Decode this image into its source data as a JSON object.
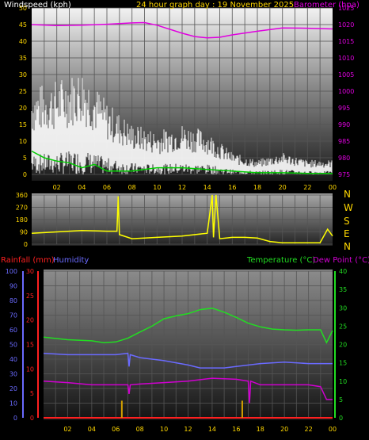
{
  "header": {
    "windspeed_label": "Windspeed (kph)",
    "title": "24 hour graph day : 19 November 2025",
    "barometer_label": "Barometer (hpa)"
  },
  "wind_dir_letters": [
    "N",
    "W",
    "S",
    "E",
    "N"
  ],
  "bottom_labels": {
    "rainfall": "Rainfall (mm)",
    "humidity": "Humidity",
    "temperature": "Temperature (°C)",
    "dewpoint": "Dew Point (°C)"
  },
  "time_ticks": [
    "02",
    "04",
    "06",
    "08",
    "10",
    "12",
    "14",
    "16",
    "18",
    "20",
    "22",
    "00"
  ],
  "colors": {
    "background": "#000000",
    "barometer": "#e000e0",
    "wind": "#ffffff",
    "wind_avg": "#00cc00",
    "direction": "#ffff00",
    "rainfall": "#ff2020",
    "humidity": "#6a6aff",
    "temperature": "#22dd22",
    "dewpoint": "#d000d0",
    "rain_bar": "#d4a000"
  },
  "chart_data": [
    {
      "type": "line",
      "name": "wind-barometer",
      "x": [
        0,
        2,
        4,
        6,
        8,
        10,
        12,
        14,
        16,
        18,
        20,
        22,
        24
      ],
      "xlabel": "",
      "y_left": {
        "label": "Windspeed (kph)",
        "range": [
          0,
          50
        ],
        "ticks": [
          "0",
          "5",
          "10",
          "15",
          "20",
          "25",
          "30",
          "35",
          "40",
          "45",
          "50"
        ]
      },
      "y_right": {
        "label": "Barometer (hpa)",
        "range": [
          975,
          1025
        ],
        "ticks": [
          "975",
          "980",
          "985",
          "990",
          "995",
          "1000",
          "1005",
          "1010",
          "1015",
          "1020",
          "1025"
        ]
      },
      "series": [
        {
          "name": "Barometer (hpa)",
          "axis": "right",
          "x": [
            0,
            2,
            4,
            6,
            8,
            9,
            10,
            12,
            13,
            14,
            15,
            16,
            18,
            20,
            22,
            24
          ],
          "y": [
            1020,
            1019.7,
            1019.8,
            1020.1,
            1020.5,
            1020.6,
            1019.8,
            1017.4,
            1016.4,
            1016.0,
            1016.2,
            1016.9,
            1018.0,
            1019.0,
            1018.9,
            1018.7
          ]
        },
        {
          "name": "Windspeed (kph)",
          "axis": "left",
          "x": [
            0,
            2,
            4,
            6,
            8,
            10,
            12,
            14,
            16,
            18,
            20,
            22,
            24
          ],
          "y": [
            12,
            13,
            15,
            10,
            7,
            6,
            7,
            6,
            3,
            2,
            3,
            2,
            2
          ],
          "gust_peak": 29
        },
        {
          "name": "Average wind",
          "axis": "left",
          "x": [
            0,
            1,
            2,
            3,
            4,
            5,
            6,
            8,
            10,
            12,
            14,
            16,
            18,
            20,
            22,
            24
          ],
          "y": [
            7,
            5,
            4,
            3.5,
            2,
            3,
            1,
            1,
            2,
            2,
            1.5,
            1,
            0.5,
            0.5,
            0.3,
            0.3
          ]
        }
      ],
      "grid": true
    },
    {
      "type": "line",
      "name": "wind-direction",
      "x": [
        0,
        2,
        4,
        6,
        8,
        10,
        12,
        14,
        16,
        18,
        20,
        22,
        24
      ],
      "xlabel": "",
      "y": {
        "label": "",
        "range": [
          0,
          360
        ],
        "ticks": [
          "0",
          "90",
          "180",
          "270",
          "360"
        ]
      },
      "series": [
        {
          "name": "Direction",
          "x": [
            0,
            2,
            4,
            6,
            6.8,
            6.9,
            7,
            8,
            10,
            12,
            14,
            14.4,
            14.5,
            14.7,
            15,
            16,
            17,
            18,
            19,
            20,
            22,
            23,
            23.6,
            24
          ],
          "y": [
            80,
            90,
            100,
            95,
            95,
            350,
            70,
            40,
            50,
            60,
            80,
            360,
            50,
            360,
            40,
            50,
            50,
            45,
            20,
            10,
            10,
            10,
            110,
            60
          ]
        }
      ],
      "grid": true
    },
    {
      "type": "line",
      "name": "temp-humidity-rain",
      "x": [
        0,
        2,
        4,
        6,
        8,
        10,
        12,
        14,
        16,
        18,
        20,
        22,
        24
      ],
      "xlabel": "",
      "y_left": {
        "label": "Humidity",
        "range": [
          0,
          100
        ],
        "ticks": [
          "0",
          "10",
          "20",
          "30",
          "40",
          "50",
          "60",
          "70",
          "80",
          "90",
          "100"
        ]
      },
      "y_rain": {
        "label": "Rainfall (mm)",
        "range": [
          0,
          30
        ],
        "ticks": [
          "0",
          "5",
          "10",
          "15",
          "20",
          "25",
          "30"
        ]
      },
      "y_right": {
        "label": "Temperature (°C)",
        "range": [
          0,
          40
        ],
        "ticks": [
          "0",
          "5",
          "10",
          "15",
          "20",
          "25",
          "30",
          "35",
          "40"
        ]
      },
      "series": [
        {
          "name": "Temperature (°C)",
          "axis": "right",
          "x": [
            0,
            2,
            4,
            5,
            6,
            7,
            8,
            9,
            10,
            11,
            12,
            13,
            14,
            15,
            16,
            17,
            18,
            19,
            20,
            21,
            22,
            23,
            23.5,
            24
          ],
          "y": [
            22,
            21.3,
            21,
            20.5,
            20.7,
            21.7,
            23.4,
            25,
            27,
            27.8,
            28.4,
            29.5,
            29.9,
            28.8,
            27.4,
            25.8,
            24.8,
            24.2,
            24,
            23.9,
            24,
            24,
            20.5,
            23.8
          ]
        },
        {
          "name": "Humidity",
          "axis": "left",
          "x": [
            0,
            2,
            4,
            6,
            7,
            7.1,
            7.2,
            8,
            10,
            12,
            13,
            14,
            15,
            16,
            18,
            20,
            22,
            24
          ],
          "y": [
            44,
            43,
            43,
            43,
            44,
            35,
            43,
            41,
            39,
            36,
            34,
            34,
            34,
            35,
            37,
            38,
            37,
            37
          ]
        },
        {
          "name": "Dew Point (°C)",
          "axis": "right",
          "x": [
            0,
            2,
            4,
            6,
            7,
            7.1,
            7.2,
            8,
            10,
            12,
            14,
            16,
            17,
            17.1,
            17.2,
            18,
            20,
            22,
            23,
            23.5,
            24
          ],
          "y": [
            10,
            9.6,
            9,
            9,
            9,
            6.5,
            9,
            9.2,
            9.6,
            10,
            10.8,
            10.5,
            10,
            4,
            10,
            9,
            9,
            9,
            8.5,
            5,
            5
          ]
        },
        {
          "name": "Rainfall (mm)",
          "axis": "rain",
          "x": [
            0,
            24
          ],
          "y": [
            0,
            0
          ]
        }
      ],
      "rain_bars": {
        "x": [
          6.5,
          16.5
        ],
        "y": [
          3.5,
          3.5
        ]
      },
      "grid": true
    }
  ]
}
